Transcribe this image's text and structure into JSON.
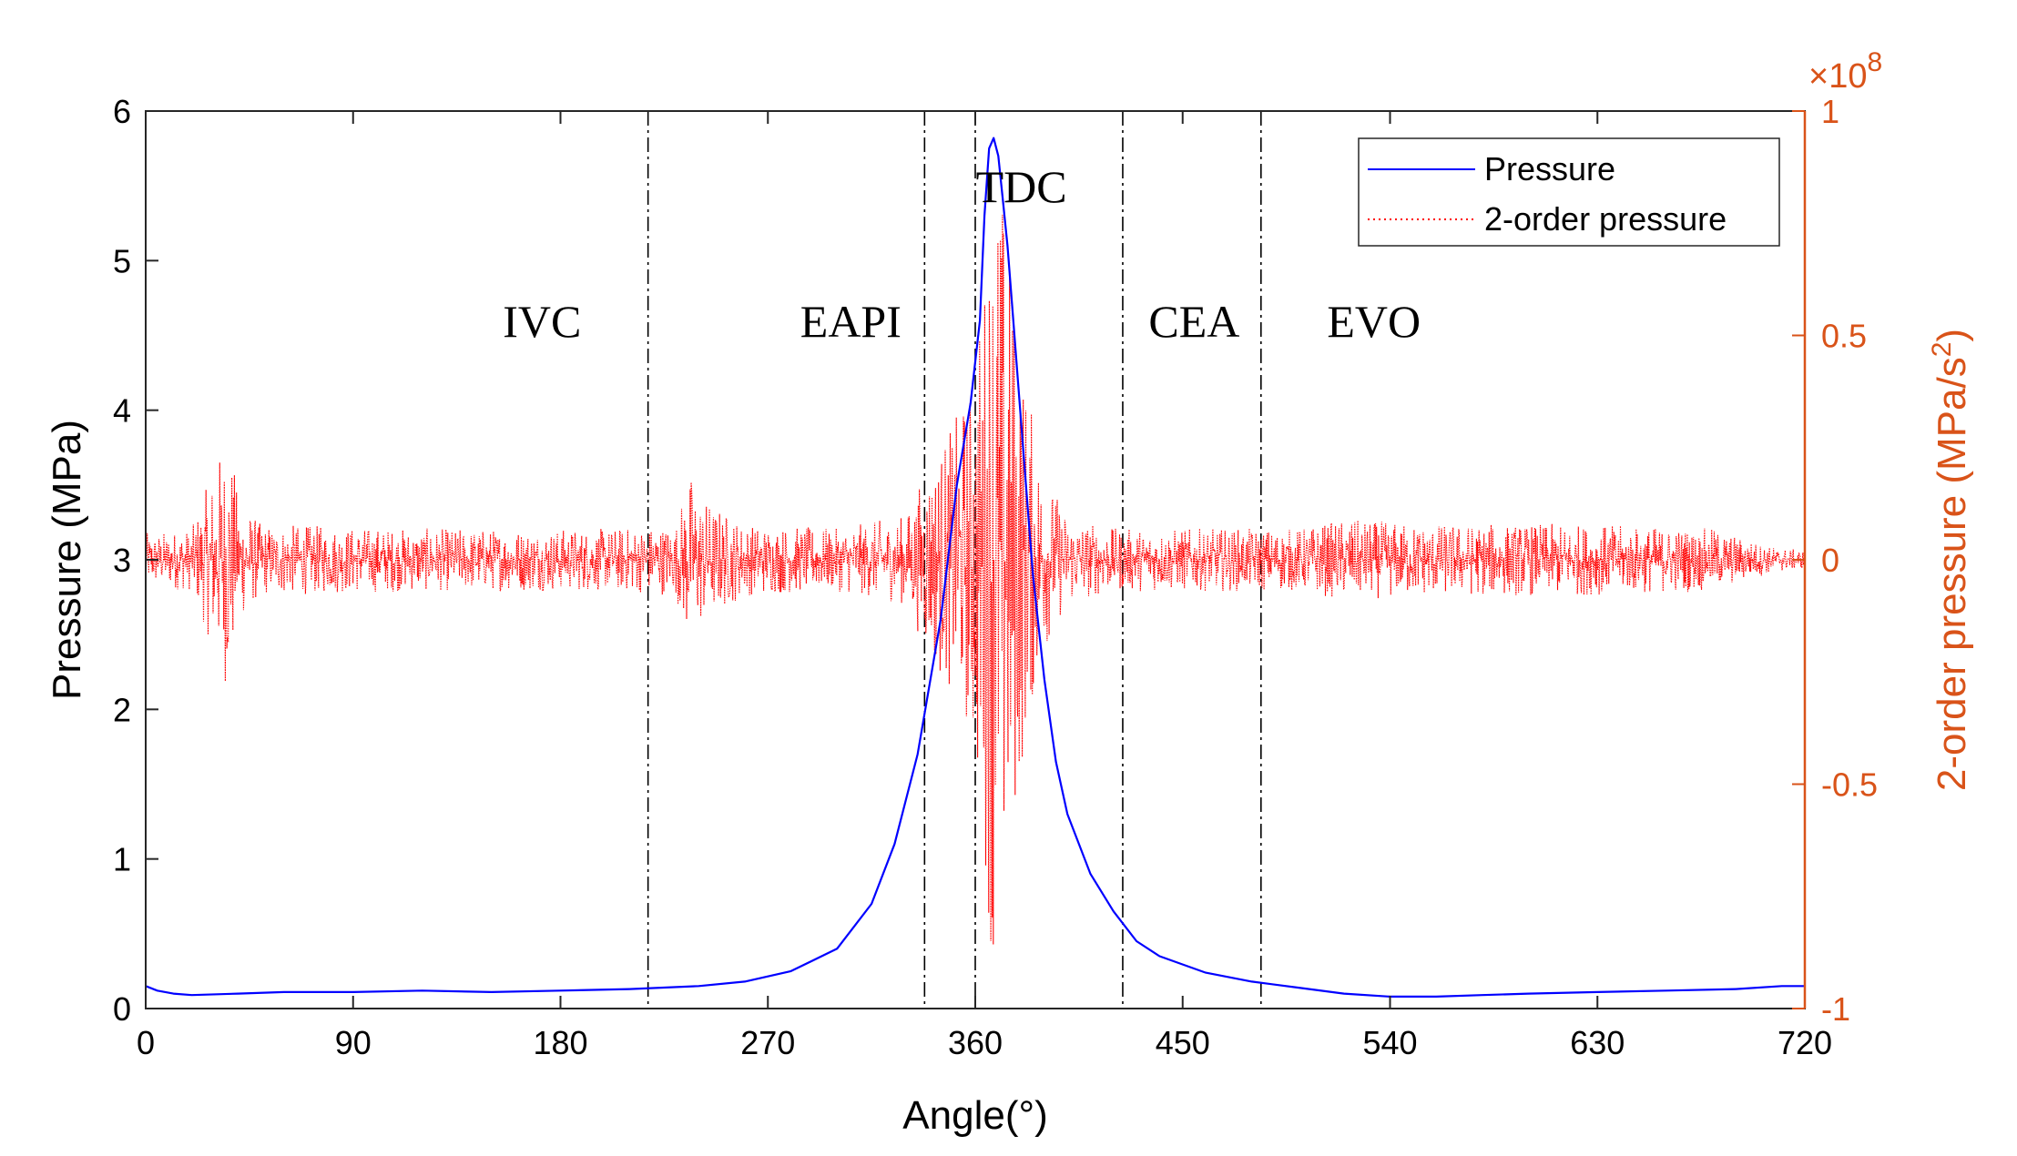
{
  "chart_data": {
    "type": "line",
    "xlabel": "Angle(°)",
    "ylabel_left": "Pressure (MPa)",
    "ylabel_right": "2-order pressure (MPa/s²)",
    "ylabel_right_base": "2-order pressure (MPa/s",
    "ylabel_right_sup": "2",
    "ylabel_right_end": ")",
    "xlim": [
      0,
      720
    ],
    "ylim_left": [
      0,
      6
    ],
    "ylim_right": [
      -1,
      1
    ],
    "right_multiplier_base": "×10",
    "right_multiplier_exp": "8",
    "x_ticks": [
      0,
      90,
      180,
      270,
      360,
      450,
      540,
      630,
      720
    ],
    "y_left_ticks": [
      0,
      1,
      2,
      3,
      4,
      5,
      6
    ],
    "y_right_ticks": [
      -1,
      -0.5,
      0,
      0.5,
      1
    ],
    "y_right_tick_labels": [
      "-1",
      "-0.5",
      "0",
      "0.5",
      "1"
    ],
    "colors": {
      "pressure": "#0000FF",
      "second_order": "#FF0000",
      "right_axis": "#D95319"
    },
    "phase_lines": [
      218,
      338,
      360,
      424,
      484
    ],
    "phase_labels": [
      {
        "text": "IVC",
        "x": 172,
        "y": 4.6
      },
      {
        "text": "EAPI",
        "x": 306,
        "y": 4.6
      },
      {
        "text": "TDC",
        "x": 380,
        "y": 5.5
      },
      {
        "text": "CEA",
        "x": 455,
        "y": 4.6
      },
      {
        "text": "EVO",
        "x": 533,
        "y": 4.6
      }
    ],
    "legend": {
      "position": "top-right",
      "entries": [
        "Pressure",
        "2-order pressure"
      ]
    },
    "series": [
      {
        "name": "Pressure",
        "axis": "left",
        "style": "solid",
        "x": [
          0,
          5,
          12,
          20,
          40,
          60,
          90,
          120,
          150,
          180,
          210,
          240,
          260,
          280,
          300,
          315,
          325,
          335,
          345,
          352,
          358,
          362,
          364,
          366,
          368,
          370,
          372,
          374,
          376,
          380,
          385,
          390,
          395,
          400,
          410,
          420,
          430,
          440,
          460,
          480,
          500,
          520,
          540,
          560,
          580,
          600,
          630,
          660,
          690,
          710,
          720
        ],
        "y": [
          0.15,
          0.12,
          0.1,
          0.09,
          0.1,
          0.11,
          0.11,
          0.12,
          0.11,
          0.12,
          0.13,
          0.15,
          0.18,
          0.25,
          0.4,
          0.7,
          1.1,
          1.7,
          2.6,
          3.5,
          4.05,
          4.6,
          5.3,
          5.75,
          5.82,
          5.7,
          5.4,
          5.1,
          4.7,
          3.9,
          2.9,
          2.2,
          1.65,
          1.3,
          0.9,
          0.65,
          0.45,
          0.35,
          0.24,
          0.18,
          0.14,
          0.1,
          0.08,
          0.08,
          0.09,
          0.1,
          0.11,
          0.12,
          0.13,
          0.15,
          0.15
        ]
      },
      {
        "name": "2-order pressure",
        "axis": "right",
        "style": "dotted",
        "noise_amplitude": [
          [
            0,
            0.06
          ],
          [
            20,
            0.07
          ],
          [
            32,
            0.24
          ],
          [
            36,
            0.3
          ],
          [
            40,
            0.14
          ],
          [
            50,
            0.08
          ],
          [
            120,
            0.07
          ],
          [
            200,
            0.07
          ],
          [
            230,
            0.08
          ],
          [
            236,
            0.2
          ],
          [
            242,
            0.14
          ],
          [
            260,
            0.08
          ],
          [
            300,
            0.07
          ],
          [
            330,
            0.1
          ],
          [
            340,
            0.22
          ],
          [
            350,
            0.3
          ],
          [
            358,
            0.4
          ],
          [
            363,
            0.6
          ],
          [
            366,
            0.8
          ],
          [
            368,
            0.97
          ],
          [
            372,
            0.85
          ],
          [
            376,
            0.65
          ],
          [
            382,
            0.4
          ],
          [
            390,
            0.2
          ],
          [
            400,
            0.1
          ],
          [
            420,
            0.07
          ],
          [
            500,
            0.07
          ],
          [
            520,
            0.09
          ],
          [
            560,
            0.08
          ],
          [
            620,
            0.08
          ],
          [
            680,
            0.07
          ],
          [
            705,
            0.03
          ],
          [
            720,
            0.02
          ]
        ]
      }
    ]
  }
}
